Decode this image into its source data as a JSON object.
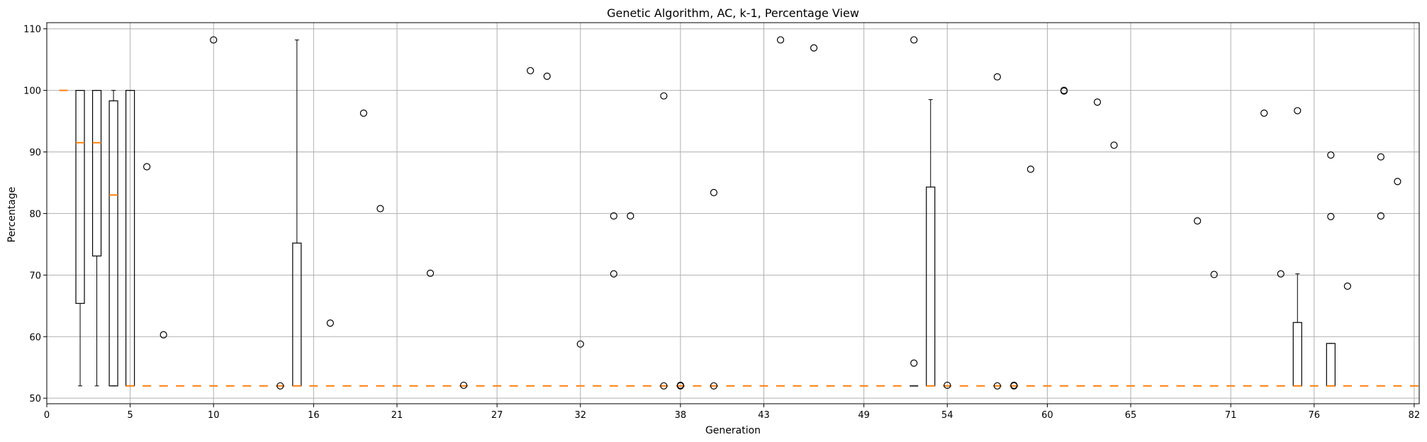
{
  "chart_data": {
    "type": "box",
    "title": "Genetic Algorithm, AC, k-1, Percentage View",
    "xlabel": "Generation",
    "ylabel": "Percentage",
    "xlim": [
      0,
      82.3
    ],
    "ylim": [
      49.1,
      111.0
    ],
    "x_ticks": [
      0,
      5,
      10,
      16,
      21,
      27,
      32,
      38,
      43,
      49,
      54,
      60,
      65,
      71,
      76,
      82
    ],
    "y_ticks": [
      50,
      60,
      70,
      80,
      90,
      100,
      110
    ],
    "grid": true,
    "colors": {
      "box": "#000000",
      "median": "#ff7f0e",
      "grid": "#b0b0b0"
    },
    "boxes": [
      {
        "x": 2,
        "q1": 65.4,
        "median": 91.5,
        "q3": 100,
        "whisker_low": 52,
        "whisker_high": 100
      },
      {
        "x": 3,
        "q1": 73.1,
        "median": 91.5,
        "q3": 100,
        "whisker_low": 52,
        "whisker_high": 100
      },
      {
        "x": 4,
        "q1": 52,
        "median": 83,
        "q3": 98.3,
        "whisker_low": 52,
        "whisker_high": 100
      },
      {
        "x": 5,
        "q1": 52,
        "median": 52,
        "q3": 100,
        "whisker_low": 52,
        "whisker_high": 100
      },
      {
        "x": 15,
        "q1": 52,
        "median": 52,
        "q3": 75.2,
        "whisker_low": 52,
        "whisker_high": 108.2
      },
      {
        "x": 53,
        "q1": 52,
        "median": 52,
        "q3": 84.3,
        "whisker_low": 52,
        "whisker_high": 98.5
      },
      {
        "x": 75,
        "q1": 52,
        "median": 52,
        "q3": 62.3,
        "whisker_low": 52,
        "whisker_high": 70.2
      },
      {
        "x": 77,
        "q1": 52,
        "median": 52,
        "q3": 58.9,
        "whisker_low": 52,
        "whisker_high": 58.9
      }
    ],
    "constant_medians": [
      {
        "x": 1,
        "value": 100
      },
      {
        "x": 52,
        "value": 52
      }
    ],
    "baseline_median": 52,
    "outliers": [
      {
        "x": 6,
        "y": 87.6
      },
      {
        "x": 7,
        "y": 60.3
      },
      {
        "x": 10,
        "y": 108.2
      },
      {
        "x": 14,
        "y": 52
      },
      {
        "x": 17,
        "y": 62.2
      },
      {
        "x": 19,
        "y": 96.3
      },
      {
        "x": 20,
        "y": 80.8
      },
      {
        "x": 23,
        "y": 70.3
      },
      {
        "x": 25,
        "y": 52.1
      },
      {
        "x": 29,
        "y": 103.2
      },
      {
        "x": 30,
        "y": 102.3
      },
      {
        "x": 32,
        "y": 58.8
      },
      {
        "x": 34,
        "y": 79.6
      },
      {
        "x": 34,
        "y": 70.2
      },
      {
        "x": 35,
        "y": 79.6
      },
      {
        "x": 37,
        "y": 99.1
      },
      {
        "x": 37,
        "y": 52
      },
      {
        "x": 38,
        "y": 52
      },
      {
        "x": 38,
        "y": 52.1
      },
      {
        "x": 40,
        "y": 83.4
      },
      {
        "x": 40,
        "y": 52
      },
      {
        "x": 44,
        "y": 108.2
      },
      {
        "x": 46,
        "y": 106.9
      },
      {
        "x": 52,
        "y": 108.2
      },
      {
        "x": 52,
        "y": 55.7
      },
      {
        "x": 54,
        "y": 52.1
      },
      {
        "x": 57,
        "y": 102.2
      },
      {
        "x": 57,
        "y": 52
      },
      {
        "x": 58,
        "y": 52
      },
      {
        "x": 58,
        "y": 52.1
      },
      {
        "x": 59,
        "y": 87.2
      },
      {
        "x": 61,
        "y": 99.9
      },
      {
        "x": 61,
        "y": 100
      },
      {
        "x": 63,
        "y": 98.1
      },
      {
        "x": 64,
        "y": 91.1
      },
      {
        "x": 69,
        "y": 78.8
      },
      {
        "x": 70,
        "y": 70.1
      },
      {
        "x": 73,
        "y": 96.3
      },
      {
        "x": 74,
        "y": 70.2
      },
      {
        "x": 75,
        "y": 96.7
      },
      {
        "x": 77,
        "y": 89.5
      },
      {
        "x": 77,
        "y": 79.5
      },
      {
        "x": 78,
        "y": 68.2
      },
      {
        "x": 80,
        "y": 89.2
      },
      {
        "x": 80,
        "y": 79.6
      },
      {
        "x": 81,
        "y": 85.2
      }
    ]
  }
}
